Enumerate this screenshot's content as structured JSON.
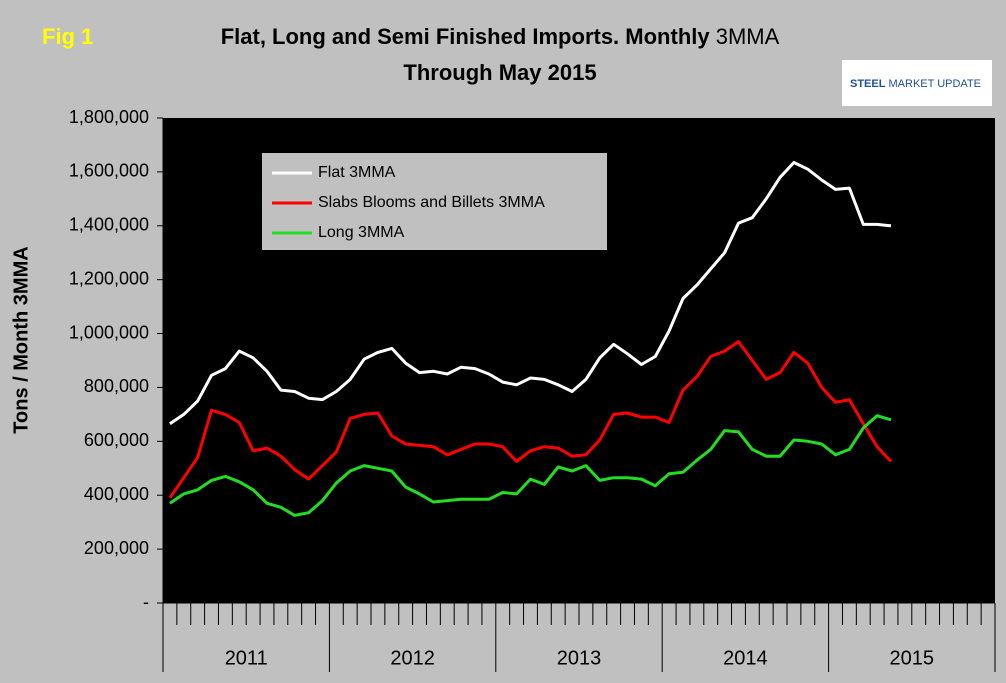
{
  "chart_data": {
    "type": "line",
    "fig_label": "Fig 1",
    "title": "Flat, Long and Semi Finished Imports. Monthly",
    "title_unit": "3MMA",
    "subtitle": "Through May 2015",
    "logo": [
      "STEEL",
      "MARKET UPDATE"
    ],
    "y_label": "Tons / Month 3MMA",
    "x_groups": [
      "2011",
      "2012",
      "2013",
      "2014",
      "2015"
    ],
    "categories": [
      null,
      null,
      null,
      null,
      null,
      null,
      null,
      null,
      null,
      null,
      null,
      null,
      null,
      null,
      null,
      null,
      null,
      null,
      null,
      null,
      null,
      null,
      null,
      null,
      null,
      null,
      null,
      null,
      null,
      null,
      null,
      null,
      null,
      null,
      null,
      null,
      null,
      null,
      null,
      null,
      null,
      null,
      null,
      null,
      null,
      null,
      null,
      null,
      null,
      null,
      null,
      null,
      null,
      null,
      null,
      null,
      null,
      null,
      null,
      null
    ],
    "series": [
      {
        "name": "Flat 3MMA",
        "color": "#ffffff",
        "values": [
          665000,
          700000,
          750000,
          845000,
          870000,
          935000,
          910000,
          860000,
          790000,
          785000,
          760000,
          755000,
          785000,
          830000,
          905000,
          930000,
          945000,
          890000,
          855000,
          860000,
          850000,
          875000,
          870000,
          850000,
          820000,
          810000,
          835000,
          830000,
          810000,
          785000,
          830000,
          910000,
          960000,
          925000,
          885000,
          915000,
          1010000,
          1130000,
          1180000,
          1240000,
          1300000,
          1410000,
          1430000,
          1500000,
          1580000,
          1635000,
          1610000,
          1570000,
          1535000,
          1540000,
          1405000,
          1405000,
          1400000,
          null,
          null,
          null,
          null,
          null,
          null,
          null
        ]
      },
      {
        "name": "Slabs Blooms and Billets 3MMA",
        "color": "#ff0000",
        "values": [
          390000,
          465000,
          540000,
          715000,
          700000,
          670000,
          565000,
          575000,
          545000,
          495000,
          460000,
          510000,
          560000,
          685000,
          700000,
          705000,
          620000,
          590000,
          585000,
          580000,
          550000,
          570000,
          590000,
          590000,
          580000,
          525000,
          565000,
          580000,
          575000,
          545000,
          550000,
          605000,
          700000,
          705000,
          690000,
          690000,
          670000,
          790000,
          840000,
          915000,
          935000,
          970000,
          900000,
          830000,
          855000,
          930000,
          890000,
          800000,
          745000,
          755000,
          665000,
          580000,
          525000,
          null,
          null,
          null,
          null,
          null,
          null,
          null
        ]
      },
      {
        "name": "Long 3MMA",
        "color": "#22dd22",
        "values": [
          370000,
          405000,
          420000,
          455000,
          470000,
          450000,
          420000,
          370000,
          355000,
          325000,
          335000,
          380000,
          445000,
          490000,
          510000,
          500000,
          490000,
          430000,
          405000,
          375000,
          380000,
          385000,
          385000,
          385000,
          410000,
          405000,
          460000,
          440000,
          505000,
          490000,
          510000,
          455000,
          465000,
          465000,
          460000,
          435000,
          480000,
          485000,
          530000,
          570000,
          640000,
          635000,
          570000,
          545000,
          545000,
          605000,
          600000,
          590000,
          550000,
          570000,
          650000,
          695000,
          680000,
          null,
          null,
          null,
          null,
          null,
          null,
          null
        ]
      }
    ],
    "ylim": [
      0,
      1800000
    ],
    "yticks": [
      {
        "value": 0,
        "label": "-"
      },
      {
        "value": 200000,
        "label": "200,000"
      },
      {
        "value": 400000,
        "label": "400,000"
      },
      {
        "value": 600000,
        "label": "600,000"
      },
      {
        "value": 800000,
        "label": "800,000"
      },
      {
        "value": 1000000,
        "label": "1,000,000"
      },
      {
        "value": 1200000,
        "label": "1,200,000"
      },
      {
        "value": 1400000,
        "label": "1,400,000"
      },
      {
        "value": 1600000,
        "label": "1,600,000"
      },
      {
        "value": 1800000,
        "label": "1,800,000"
      }
    ],
    "grid": false
  }
}
